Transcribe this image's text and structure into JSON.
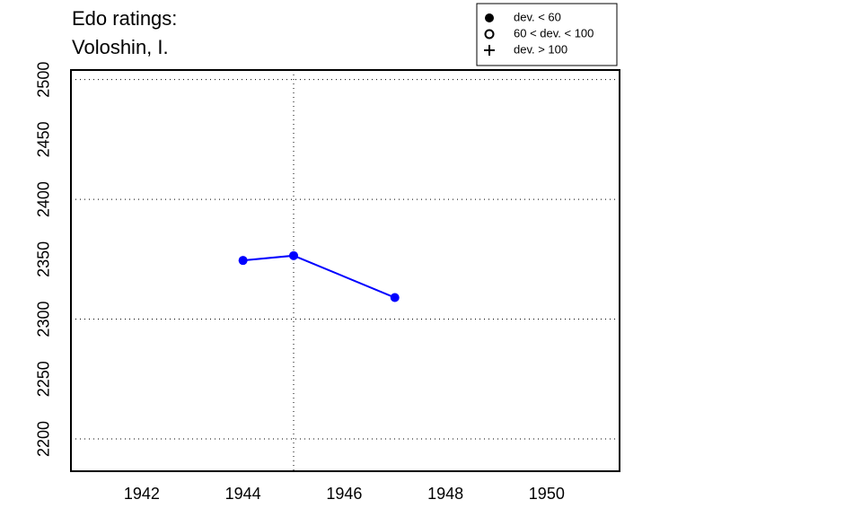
{
  "chart_data": {
    "type": "line",
    "title": [
      "Edo ratings:",
      "Voloshin, I."
    ],
    "x": [
      1944,
      1945,
      1947
    ],
    "series": [
      {
        "color": "#0000ff",
        "values": [
          2349,
          2353,
          2318
        ]
      }
    ],
    "xlim": [
      1940.6,
      1951.44
    ],
    "ylim": [
      2173,
      2508
    ],
    "xticks": [
      1942,
      1944,
      1946,
      1948,
      1950
    ],
    "yticks": [
      2200,
      2250,
      2300,
      2350,
      2400,
      2450,
      2500
    ],
    "xgrid": [
      1945
    ],
    "ygrid": [
      2200,
      2300,
      2400,
      2500
    ],
    "legend_position": "top-right",
    "legend": [
      {
        "label": "dev. < 60",
        "symbol": "filled-circle"
      },
      {
        "label": "60 < dev. < 100",
        "symbol": "open-circle"
      },
      {
        "label": "dev. > 100",
        "symbol": "plus"
      }
    ]
  }
}
